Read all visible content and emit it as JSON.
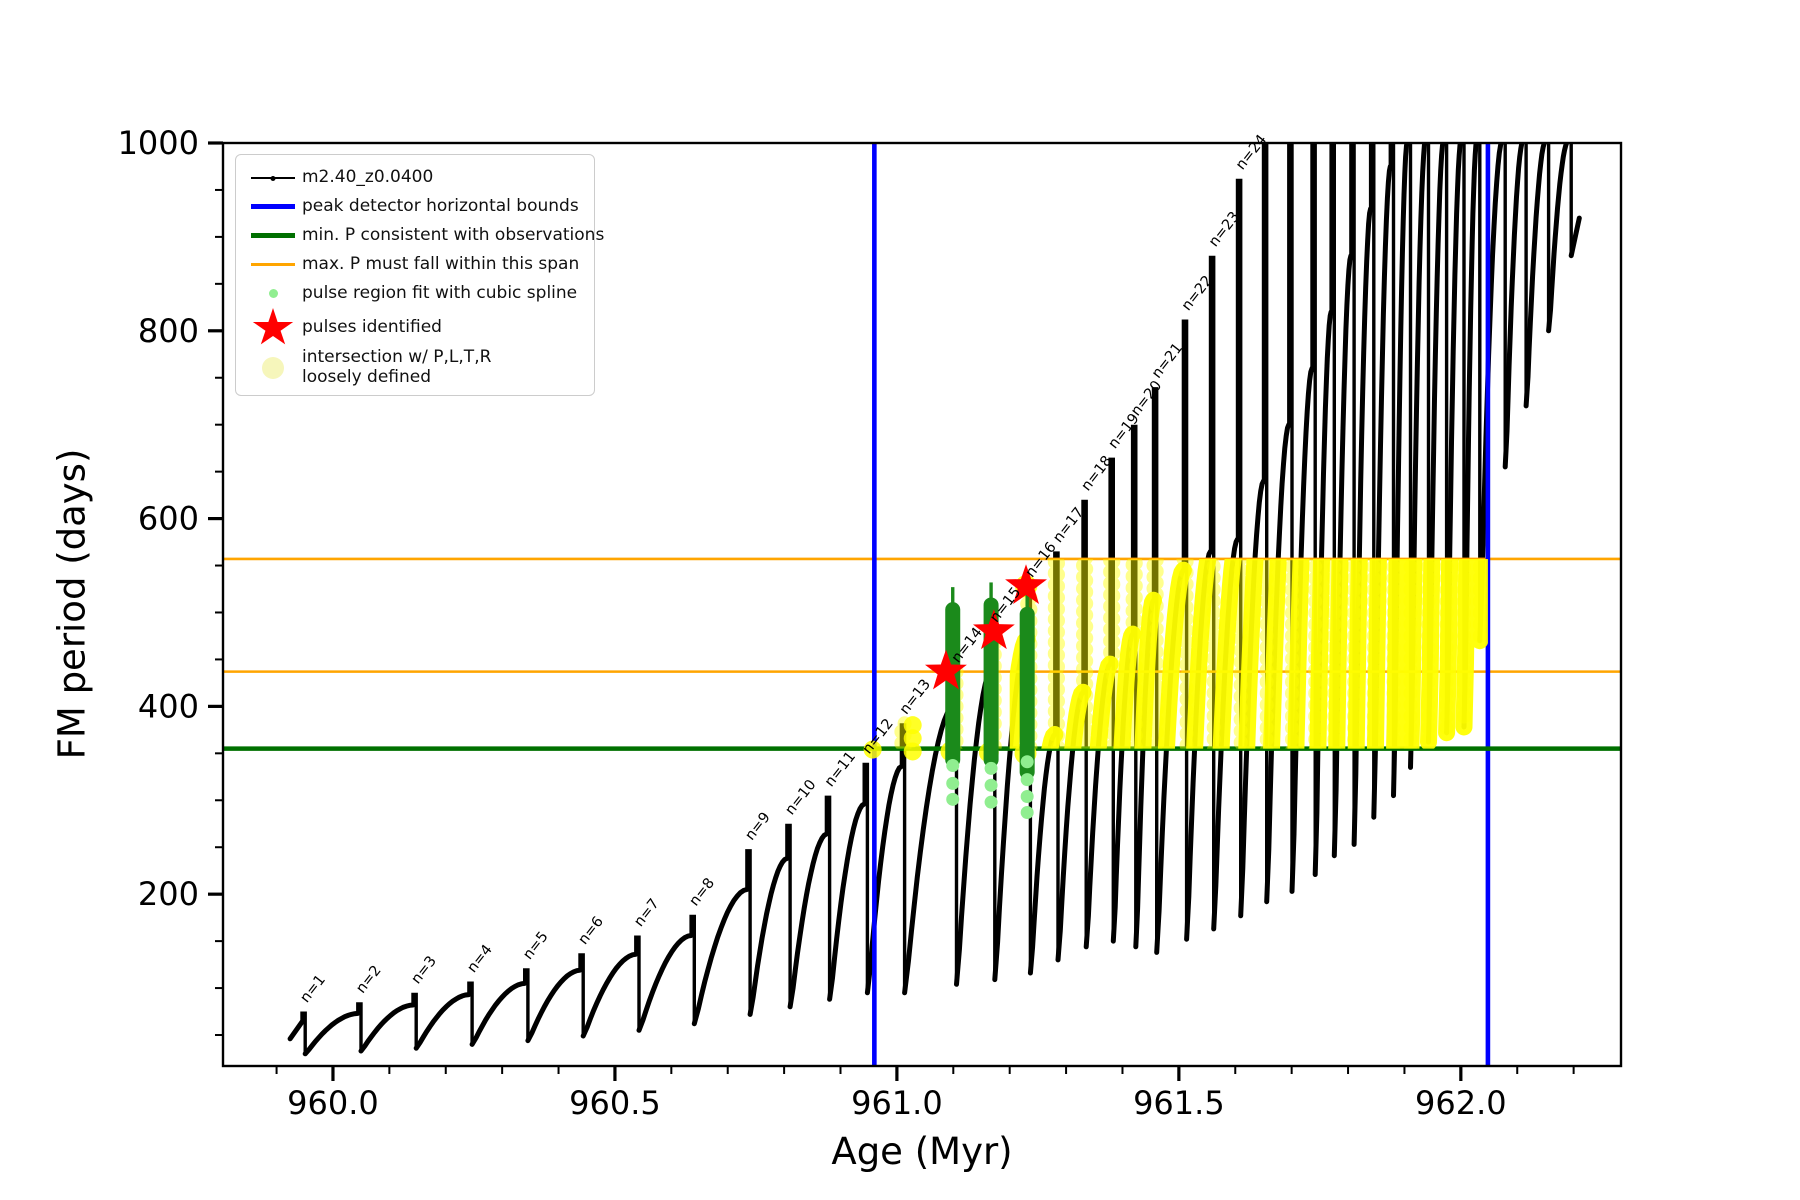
{
  "ui": {
    "xlabel": "Age (Myr)",
    "ylabel": "FM period (days)",
    "legend": {
      "items": [
        {
          "label": "m2.40_z0.0400",
          "marker": "line-dot",
          "color": "#000000"
        },
        {
          "label": "peak detector horizontal bounds",
          "marker": "thick-line",
          "color": "#0000ff"
        },
        {
          "label": "min. P consistent with observations",
          "marker": "thick-line",
          "color": "#007000"
        },
        {
          "label": "max. P must fall within this span",
          "marker": "thin-line",
          "color": "#ffa500"
        },
        {
          "label": "pulse region fit with cubic spline",
          "marker": "dot",
          "color": "#90ee90"
        },
        {
          "label": "pulses identified",
          "marker": "star",
          "color": "#ff0000"
        },
        {
          "label": "intersection w/ P,L,T,R",
          "label2": "loosely defined",
          "marker": "big-dot",
          "color": "#f6f6bb"
        }
      ]
    }
  },
  "chart_data": {
    "type": "line",
    "title": "",
    "xlabel": "Age (Myr)",
    "ylabel": "FM period (days)",
    "xlim": [
      959.805,
      962.284
    ],
    "ylim": [
      17,
      1000
    ],
    "x_major_ticks": [
      960.0,
      960.5,
      961.0,
      961.5,
      962.0
    ],
    "x_major_labels": [
      "960.0",
      "960.5",
      "961.0",
      "961.5",
      "962.0"
    ],
    "x_minor_step": 0.1,
    "y_major_ticks": [
      200,
      400,
      600,
      800,
      1000
    ],
    "y_major_labels": [
      "200",
      "400",
      "600",
      "800",
      "1000"
    ],
    "y_minor_step": 50,
    "grid": false,
    "legend_position": "upper left",
    "colors": {
      "track": "#000000",
      "peak_bounds": "#0000ff",
      "min_p": "#007000",
      "max_p_span": "#ffa500",
      "spline_fit": "#90ee90",
      "pulse_region": "#1b8a1b",
      "pulses": "#ff0000",
      "intersection": "#ffff00"
    },
    "vlines_blue": [
      960.96,
      962.048
    ],
    "hline_green": 355,
    "hlines_orange": [
      437,
      557
    ],
    "yellow_band": {
      "value_min": 355,
      "value_max": 557,
      "age_min_solid": 961.2,
      "age_min_faint": 960.99,
      "age_max": 962.048
    },
    "series_start": {
      "age": 959.924,
      "value": 46
    },
    "series_end_age": 962.21,
    "pulses": [
      {
        "n": 1,
        "age": 959.945,
        "peak": 75,
        "base": 64,
        "min": 30
      },
      {
        "n": 2,
        "age": 960.044,
        "peak": 85,
        "base": 73,
        "min": 33
      },
      {
        "n": 3,
        "age": 960.142,
        "peak": 95,
        "base": 82,
        "min": 36
      },
      {
        "n": 4,
        "age": 960.241,
        "peak": 107,
        "base": 93,
        "min": 40
      },
      {
        "n": 5,
        "age": 960.34,
        "peak": 121,
        "base": 105,
        "min": 44
      },
      {
        "n": 6,
        "age": 960.438,
        "peak": 137,
        "base": 119,
        "min": 49
      },
      {
        "n": 7,
        "age": 960.537,
        "peak": 156,
        "base": 136,
        "min": 55
      },
      {
        "n": 8,
        "age": 960.635,
        "peak": 178,
        "base": 156,
        "min": 62
      },
      {
        "n": 9,
        "age": 960.734,
        "peak": 248,
        "base": 205,
        "min": 72
      },
      {
        "n": 10,
        "age": 960.805,
        "peak": 275,
        "base": 238,
        "min": 80
      },
      {
        "n": 11,
        "age": 960.875,
        "peak": 305,
        "base": 264,
        "min": 88
      },
      {
        "n": 12,
        "age": 960.942,
        "peak": 340,
        "base": 296,
        "min": 95
      },
      {
        "n": 13,
        "age": 961.008,
        "peak": 382,
        "base": 336,
        "min": 95
      },
      {
        "n": 14,
        "age": 961.1,
        "peak": 437,
        "base": 400,
        "min": 104
      },
      {
        "n": 15,
        "age": 961.168,
        "peak": 480,
        "base": 440,
        "min": 109
      },
      {
        "n": 16,
        "age": 961.231,
        "peak": 528,
        "base": 472,
        "min": 116
      },
      {
        "n": 17,
        "age": 961.28,
        "peak": 565,
        "base": 370,
        "min": 130
      },
      {
        "n": 18,
        "age": 961.33,
        "peak": 620,
        "base": 415,
        "min": 144
      },
      {
        "n": 19,
        "age": 961.378,
        "peak": 665,
        "base": 445,
        "min": 150
      },
      {
        "n": 20,
        "age": 961.418,
        "peak": 700,
        "base": 477,
        "min": 144
      },
      {
        "n": 21,
        "age": 961.455,
        "peak": 740,
        "base": 513,
        "min": 138
      },
      {
        "n": 22,
        "age": 961.508,
        "peak": 812,
        "base": 545,
        "min": 152
      },
      {
        "n": 23,
        "age": 961.556,
        "peak": 880,
        "base": 565,
        "min": 163
      },
      {
        "n": 24,
        "age": 961.604,
        "peak": 962,
        "base": 578,
        "min": 177
      },
      {
        "age": 961.65,
        "peak": 1100,
        "base": 640,
        "min": 192
      },
      {
        "age": 961.695,
        "peak": 1100,
        "base": 700,
        "min": 203
      },
      {
        "age": 961.736,
        "peak": 1100,
        "base": 760,
        "min": 221
      },
      {
        "age": 961.77,
        "peak": 1100,
        "base": 820,
        "min": 241
      },
      {
        "age": 961.805,
        "peak": 1100,
        "base": 880,
        "min": 253
      },
      {
        "age": 961.84,
        "peak": 1100,
        "base": 930,
        "min": 282
      },
      {
        "age": 961.875,
        "peak": 1100,
        "base": 975,
        "min": 305
      },
      {
        "age": 961.905,
        "peak": 1100,
        "base": 1020,
        "min": 335
      },
      {
        "age": 961.937,
        "peak": 1100,
        "base": 1050,
        "min": 362
      },
      {
        "age": 961.969,
        "peak": 1100,
        "base": 1080,
        "min": 372
      },
      {
        "age": 962.0,
        "peak": 1100,
        "base": 1100,
        "min": 378
      },
      {
        "age": 962.028,
        "peak": 1100,
        "base": 1100,
        "min": 470
      },
      {
        "age": 962.073,
        "peak": 1100,
        "base": 1100,
        "min": 655
      },
      {
        "age": 962.11,
        "peak": 1100,
        "base": 1100,
        "min": 720
      },
      {
        "age": 962.15,
        "peak": 1100,
        "base": 1100,
        "min": 800
      },
      {
        "age": 962.19,
        "peak": 1100,
        "base": 1100,
        "min": 880
      }
    ],
    "stars_identified": [
      {
        "age": 961.087,
        "value": 437
      },
      {
        "age": 961.172,
        "value": 480
      },
      {
        "age": 961.229,
        "value": 528
      }
    ],
    "spline_regions": [
      {
        "age": 961.099,
        "low": 343,
        "high": 503,
        "tip": 527
      },
      {
        "age": 961.167,
        "low": 343,
        "high": 508,
        "tip": 532
      },
      {
        "age": 961.231,
        "low": 330,
        "high": 498,
        "tip": 520
      }
    ],
    "spline_dots": [
      {
        "age": 961.099,
        "values": [
          337,
          318,
          301
        ]
      },
      {
        "age": 961.167,
        "values": [
          334,
          316,
          298
        ]
      },
      {
        "age": 961.231,
        "values": [
          341,
          322,
          304,
          287
        ]
      }
    ],
    "yellow_spots": [
      {
        "age": 960.957,
        "value": 354,
        "r": 9
      },
      {
        "age": 961.028,
        "value": 352,
        "r": 9
      },
      {
        "age": 961.028,
        "value": 366,
        "r": 9
      },
      {
        "age": 961.028,
        "value": 380,
        "r": 9
      },
      {
        "age": 961.095,
        "value": 352,
        "r": 10
      },
      {
        "age": 961.163,
        "value": 351,
        "r": 10
      },
      {
        "age": 961.228,
        "value": 350,
        "r": 11
      },
      {
        "age": 961.229,
        "value": 528,
        "r": 11
      }
    ]
  }
}
